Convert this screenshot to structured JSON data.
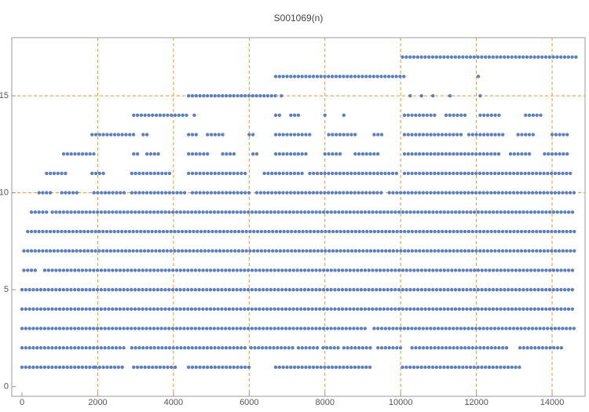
{
  "chart_data": {
    "type": "scatter",
    "title": "S001069(n)",
    "color": "#5b7fbf",
    "grid_color": "#e39b2c",
    "xlim": [
      -270,
      14870
    ],
    "ylim": [
      -0.5,
      18
    ],
    "xticks": [
      0,
      2000,
      4000,
      6000,
      8000,
      10000,
      12000,
      14000
    ],
    "yticks": [
      0,
      5,
      10,
      15
    ],
    "grid_x": [
      2000,
      4000,
      6000,
      8000,
      10000,
      12000,
      14000
    ],
    "grid_y": [
      10,
      15
    ],
    "series": [
      {
        "y": 1,
        "runs": [
          [
            0,
            1900
          ],
          [
            1950,
            2700
          ],
          [
            2950,
            4100
          ],
          [
            4400,
            6000
          ],
          [
            6700,
            9250
          ],
          [
            10050,
            13150
          ]
        ]
      },
      {
        "y": 2,
        "runs": [
          [
            0,
            2700
          ],
          [
            2900,
            3500
          ],
          [
            3600,
            5950
          ],
          [
            6050,
            7150
          ],
          [
            7300,
            7800
          ],
          [
            7950,
            8350
          ],
          [
            8500,
            9200
          ],
          [
            9400,
            10000
          ],
          [
            10300,
            10700
          ],
          [
            10800,
            11500
          ],
          [
            11600,
            12000
          ],
          [
            12100,
            12800
          ],
          [
            13150,
            14300
          ]
        ]
      },
      {
        "y": 3,
        "runs": [
          [
            0,
            9150
          ],
          [
            9300,
            14600
          ]
        ]
      },
      {
        "y": 4,
        "runs": [
          [
            0,
            14600
          ]
        ]
      },
      {
        "y": 5,
        "runs": [
          [
            0,
            14600
          ]
        ]
      },
      {
        "y": 6,
        "runs": [
          [
            50,
            350
          ],
          [
            600,
            14600
          ]
        ]
      },
      {
        "y": 7,
        "runs": [
          [
            50,
            14600
          ]
        ]
      },
      {
        "y": 8,
        "runs": [
          [
            150,
            14600
          ]
        ]
      },
      {
        "y": 9,
        "runs": [
          [
            250,
            700
          ],
          [
            800,
            14600
          ]
        ]
      },
      {
        "y": 10,
        "runs": [
          [
            450,
            800
          ],
          [
            1050,
            1500
          ],
          [
            1900,
            2700
          ],
          [
            2900,
            4300
          ],
          [
            4500,
            6000
          ],
          [
            6200,
            9500
          ],
          [
            9700,
            14600
          ]
        ]
      },
      {
        "y": 11,
        "runs": [
          [
            650,
            1200
          ],
          [
            1850,
            2200
          ],
          [
            2900,
            3900
          ],
          [
            4400,
            5900
          ],
          [
            6400,
            7400
          ],
          [
            7600,
            9900
          ],
          [
            10100,
            14500
          ]
        ]
      },
      {
        "y": 12,
        "runs": [
          [
            1100,
            1900
          ],
          [
            2950,
            3050
          ],
          [
            3300,
            3600
          ],
          [
            4400,
            4900
          ],
          [
            5300,
            5600
          ],
          [
            6100,
            6200
          ],
          [
            6700,
            7500
          ],
          [
            8000,
            8400
          ],
          [
            8800,
            9400
          ],
          [
            10100,
            12600
          ],
          [
            12900,
            13400
          ],
          [
            13800,
            14400
          ]
        ]
      },
      {
        "y": 13,
        "runs": [
          [
            1850,
            3000
          ],
          [
            3200,
            3300
          ],
          [
            4400,
            4600
          ],
          [
            4900,
            5300
          ],
          [
            6000,
            6100
          ],
          [
            6700,
            7600
          ],
          [
            8100,
            8800
          ],
          [
            9300,
            9500
          ],
          [
            10100,
            11600
          ],
          [
            11800,
            12700
          ],
          [
            13100,
            13500
          ],
          [
            14000,
            14400
          ]
        ]
      },
      {
        "y": 14,
        "runs": [
          [
            2950,
            4400
          ],
          [
            4550,
            4600
          ],
          [
            6700,
            6800
          ],
          [
            7100,
            7300
          ],
          [
            8000,
            8050
          ],
          [
            8500,
            8550
          ],
          [
            10100,
            10900
          ],
          [
            11200,
            11700
          ],
          [
            12100,
            12600
          ],
          [
            13300,
            13700
          ]
        ]
      },
      {
        "y": 15,
        "runs": [
          [
            4400,
            6750
          ],
          [
            6850,
            6900
          ],
          [
            10250,
            10300
          ],
          [
            10550,
            10600
          ],
          [
            10850,
            10900
          ],
          [
            11300,
            11350
          ],
          [
            12100,
            12150
          ]
        ]
      },
      {
        "y": 16,
        "runs": [
          [
            6700,
            10100
          ],
          [
            12050,
            12100
          ]
        ]
      },
      {
        "y": 17,
        "runs": [
          [
            10050,
            14650
          ]
        ]
      }
    ]
  }
}
